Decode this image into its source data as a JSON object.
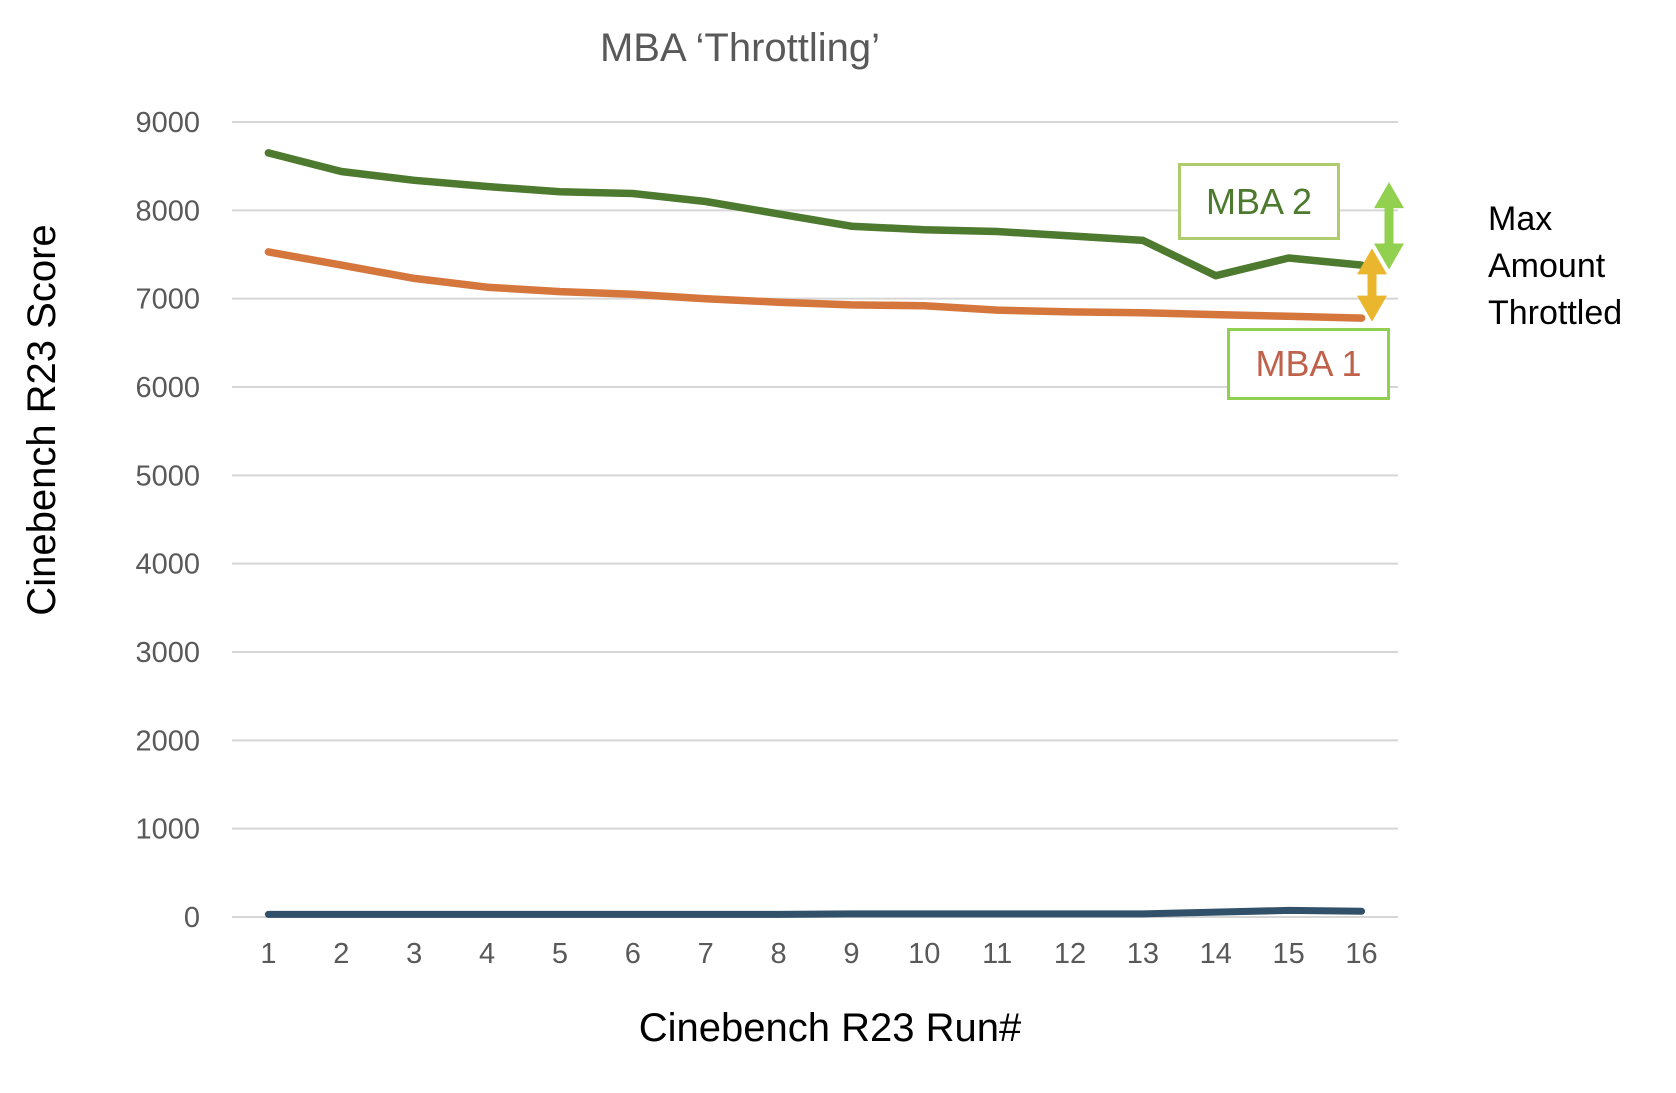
{
  "page": {
    "background_color": "#ffffff",
    "text_gray": "#595959"
  },
  "chart_data": {
    "type": "line",
    "title": "MBA ‘Throttling’",
    "xlabel": "Cinebench R23 Run#",
    "ylabel": "Cinebench R23 Score",
    "categories": [
      "1",
      "2",
      "3",
      "4",
      "5",
      "6",
      "7",
      "8",
      "9",
      "10",
      "11",
      "12",
      "13",
      "14",
      "15",
      "16"
    ],
    "ylim": [
      0,
      9000
    ],
    "ytick_interval": 1000,
    "grid": "horizontal only",
    "legend_position": "inline label boxes on plot",
    "series": [
      {
        "name": "MBA 2",
        "color": "#4d7a2e",
        "values": [
          8650,
          8440,
          8340,
          8270,
          8210,
          8190,
          8100,
          7960,
          7820,
          7780,
          7760,
          7710,
          7660,
          7260,
          7460,
          7380
        ]
      },
      {
        "name": "MBA 1",
        "color": "#d5763c",
        "values": [
          7530,
          7380,
          7230,
          7130,
          7080,
          7050,
          7000,
          6960,
          6930,
          6920,
          6870,
          6850,
          6840,
          6820,
          6800,
          6780
        ]
      },
      {
        "name": "",
        "color": "#315069",
        "values": [
          30,
          30,
          30,
          30,
          30,
          30,
          30,
          30,
          35,
          35,
          35,
          35,
          35,
          55,
          75,
          65
        ]
      }
    ],
    "annotations": {
      "mba2_box": {
        "label": "MBA 2",
        "text_color": "#4d7a2e",
        "border_color": "#aecb6d"
      },
      "mba1_box": {
        "label": "MBA 1",
        "text_color": "#c0614b",
        "border_color": "#8fd04e"
      },
      "max_throttled": {
        "label": "Max Amount Throttled",
        "text_color": "#000000"
      },
      "arrows": [
        {
          "name": "mba2-throttle-arrow-icon",
          "color": "#92d050",
          "x": 1389,
          "y_from_value": 8320,
          "y_to_value": 7330
        },
        {
          "name": "mba1-throttle-arrow-icon",
          "color": "#eab62e",
          "x": 1372,
          "y_from_value": 7570,
          "y_to_value": 6740
        }
      ]
    }
  }
}
